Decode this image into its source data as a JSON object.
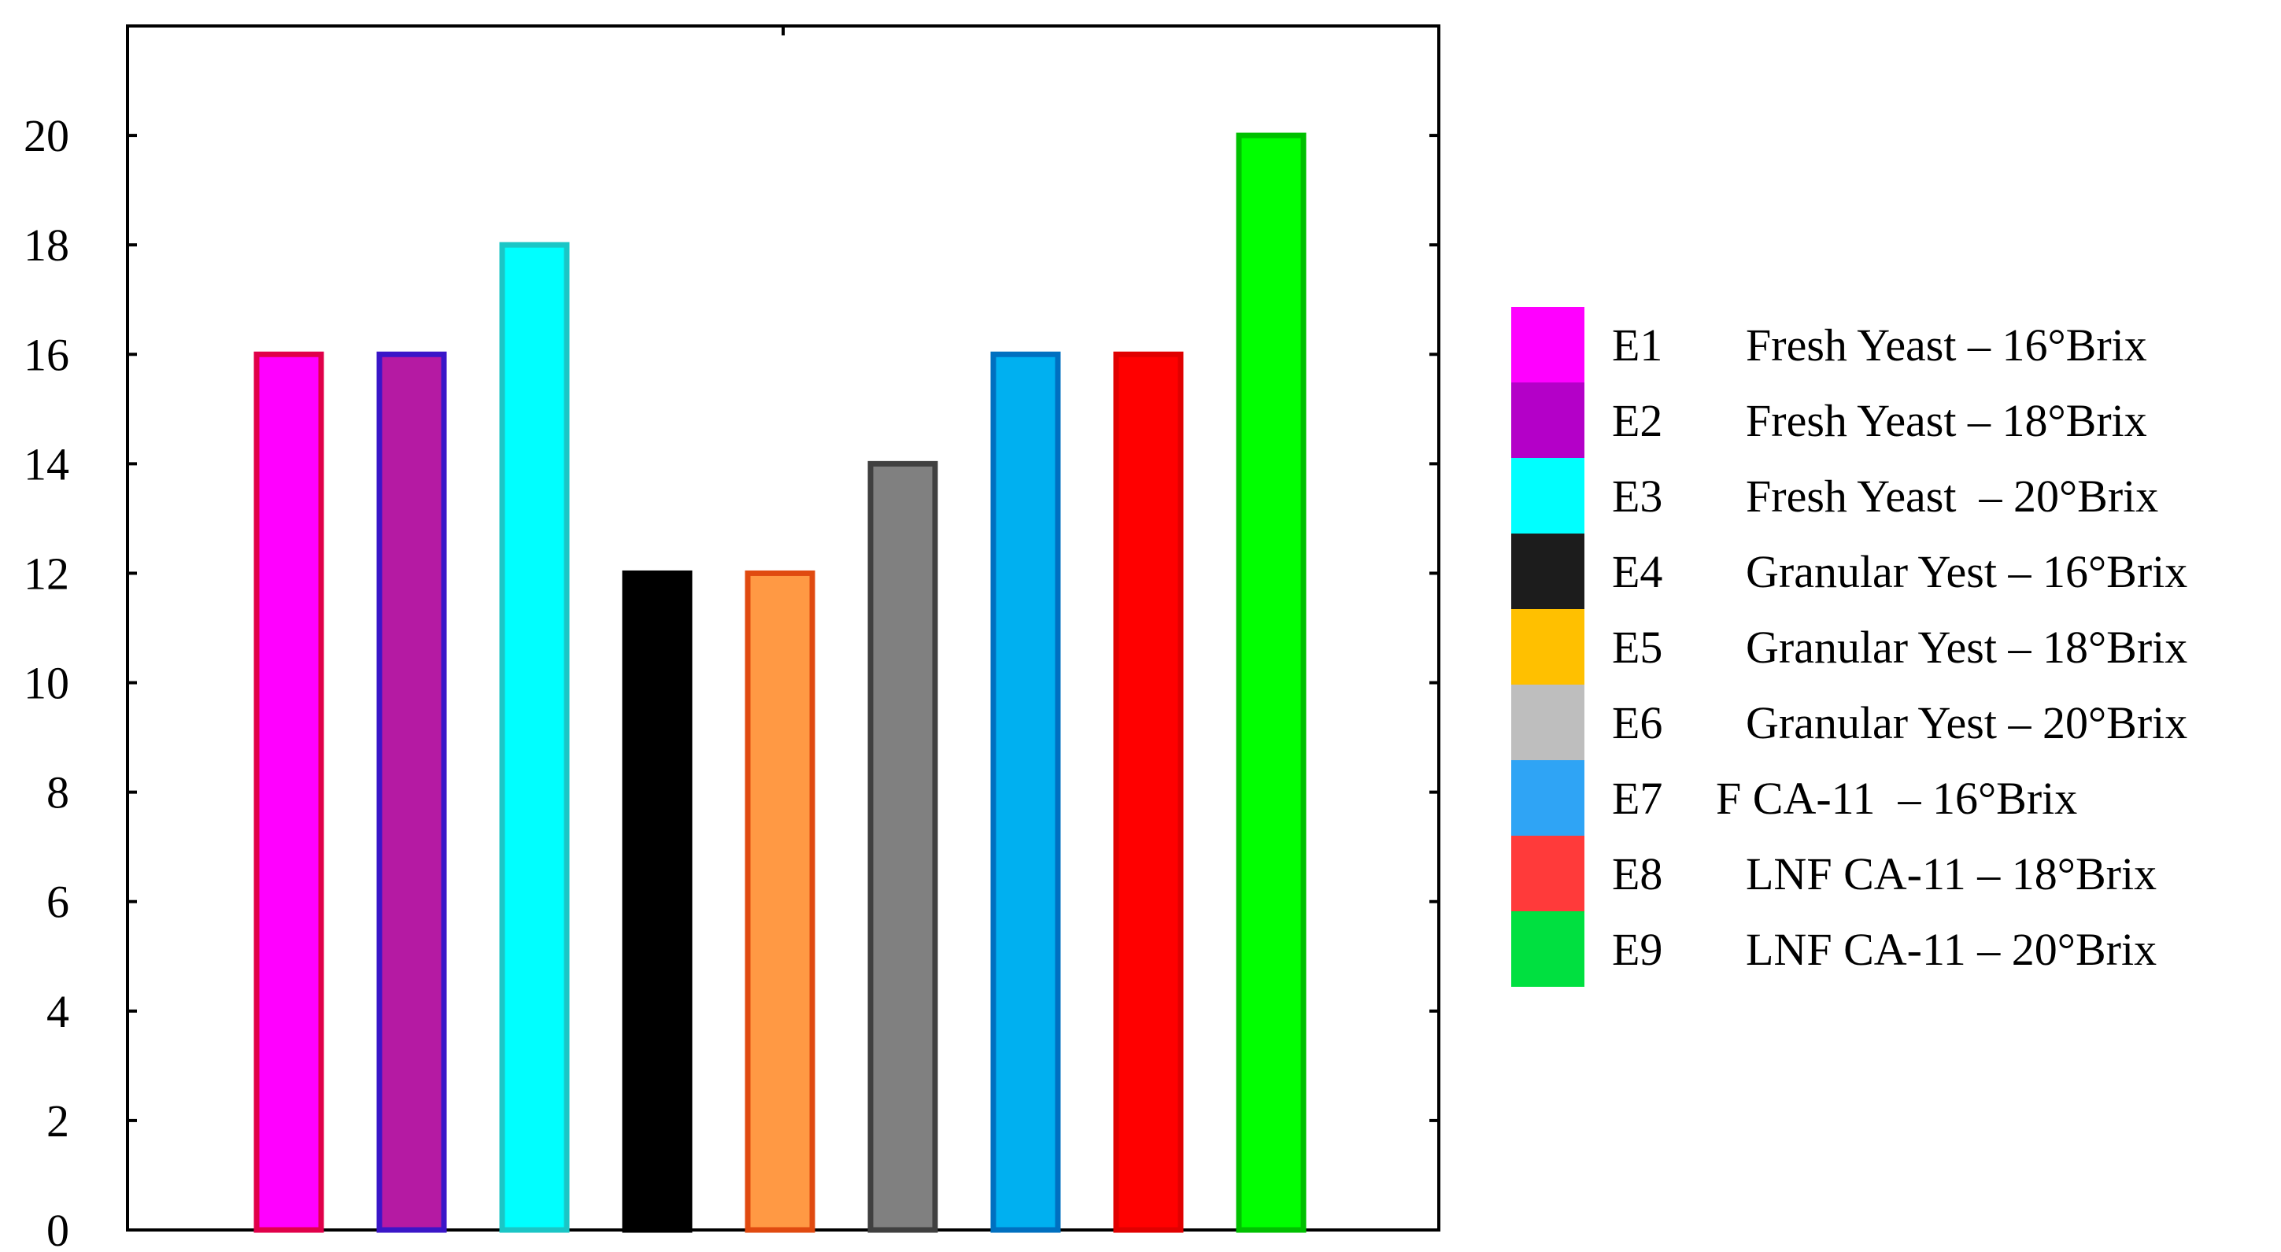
{
  "chart_data": {
    "type": "bar",
    "title": "",
    "xlabel": "",
    "ylabel": "",
    "ylim": [
      0,
      22
    ],
    "yticks": [
      "0",
      "2",
      "4",
      "6",
      "8",
      "10",
      "12",
      "14",
      "16",
      "18",
      "20"
    ],
    "grid": false,
    "legend_position": "right",
    "categories": [
      "E1",
      "E2",
      "E3",
      "E4",
      "E5",
      "E6",
      "E7",
      "E8",
      "E9"
    ],
    "values": [
      16,
      16,
      18,
      12,
      12,
      14,
      16,
      16,
      20
    ],
    "bar_fills": [
      "#ff00ff",
      "#b51aa3",
      "#00ffff",
      "#000000",
      "#ff9944",
      "#808080",
      "#00b0f0",
      "#ff0000",
      "#00ff00"
    ],
    "bar_strokes": [
      "#e0004a",
      "#3a16c8",
      "#1bc6c6",
      "#000000",
      "#e04a10",
      "#404040",
      "#0070c0",
      "#e00000",
      "#00c000"
    ],
    "legend": [
      {
        "code": "E1",
        "label": "Fresh Yeast – 16°Brix",
        "color": "#ff00ff"
      },
      {
        "code": "E2",
        "label": "Fresh Yeast – 18°Brix",
        "color": "#b400c8"
      },
      {
        "code": "E3",
        "label": "Fresh Yeast  – 20°Brix",
        "color": "#00ffff"
      },
      {
        "code": "E4",
        "label": "Granular Yest – 16°Brix",
        "color": "#1c1c1c"
      },
      {
        "code": "E5",
        "label": "Granular Yest – 18°Brix",
        "color": "#ffc000"
      },
      {
        "code": "E6",
        "label": "Granular Yest – 20°Brix",
        "color": "#bebebe"
      },
      {
        "code": "E7",
        "label": "F CA-11  – 16°Brix",
        "color": "#2fa4f5"
      },
      {
        "code": "E8",
        "label": "LNF CA-11 – 18°Brix",
        "color": "#ff3a3a"
      },
      {
        "code": "E9",
        "label": "LNF CA-11 – 20°Brix",
        "color": "#00e040"
      }
    ]
  }
}
